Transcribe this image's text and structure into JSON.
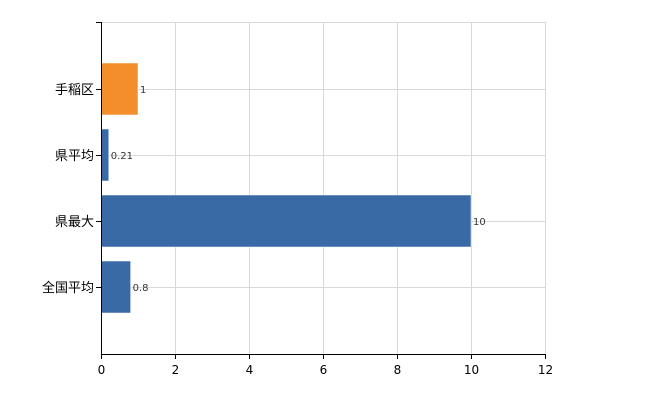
{
  "chart_data": {
    "type": "bar",
    "orientation": "horizontal",
    "categories": [
      "手稲区",
      "県平均",
      "県最大",
      "全国平均"
    ],
    "values": [
      1,
      0.21,
      10,
      0.8
    ],
    "data_labels": [
      "1",
      "0.21",
      "10",
      "0.8"
    ],
    "bar_colors": [
      "#F28E2B",
      "#3A6AA6",
      "#3A6AA6",
      "#3A6AA6"
    ],
    "xlim": [
      0,
      12
    ],
    "x_ticks": [
      0,
      2,
      4,
      6,
      8,
      10,
      12
    ],
    "x_tick_labels": [
      "0",
      "2",
      "4",
      "6",
      "8",
      "10",
      "12"
    ],
    "grid": true,
    "legend": "none",
    "title": "",
    "xlabel": "",
    "ylabel": ""
  }
}
